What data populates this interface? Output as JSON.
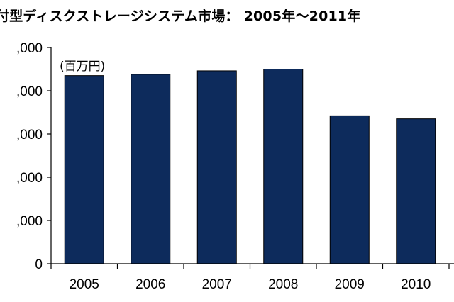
{
  "title": "付型ディスクストレージシステム市場：  2005年～2011年",
  "chart_data": {
    "type": "bar",
    "unit_label": "(百万円)",
    "categories": [
      "2005",
      "2006",
      "2007",
      "2008",
      "2009",
      "2010"
    ],
    "values": [
      435000,
      438000,
      446000,
      450000,
      342000,
      335000
    ],
    "ylim": [
      0,
      500000
    ],
    "yticks": [
      0,
      100000,
      200000,
      300000,
      400000,
      500000
    ],
    "ytick_labels": [
      "0",
      ",000",
      ",000",
      ",000",
      ",000",
      ",000"
    ],
    "bar_color": "#0d2b5c",
    "grid": false,
    "legend": "none"
  }
}
